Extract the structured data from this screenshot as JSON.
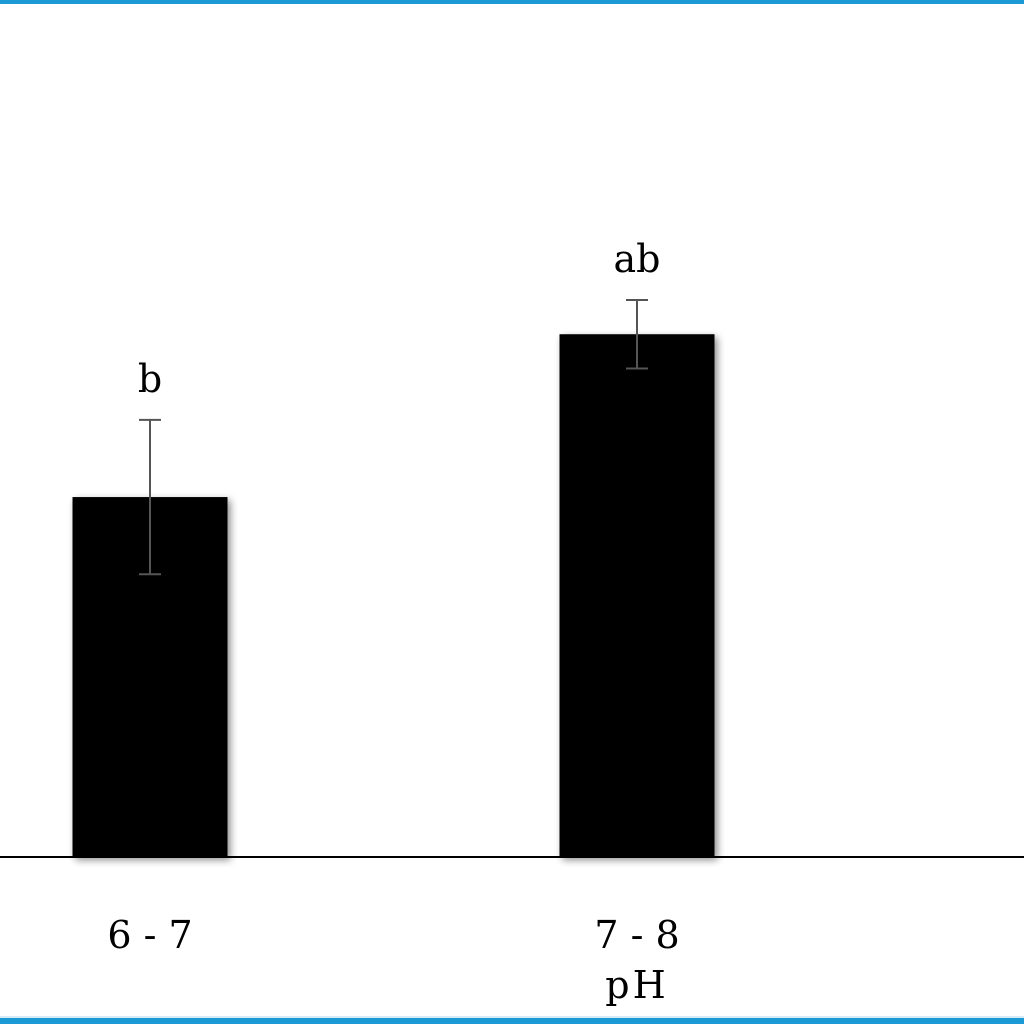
{
  "chart_data": {
    "type": "bar",
    "xlabel": "pH",
    "ylabel": "",
    "categories": [
      "6 - 7",
      "7 - 8"
    ],
    "values": [
      42,
      61
    ],
    "errors": [
      9,
      4
    ],
    "significance_letters": [
      "b",
      "ab"
    ],
    "ylim": [
      0,
      100
    ],
    "grid": false,
    "bar_color": "#000000",
    "error_bar_color": "#555555"
  },
  "colors": {
    "frame": "#1c9ad6",
    "background": "#ffffff"
  }
}
